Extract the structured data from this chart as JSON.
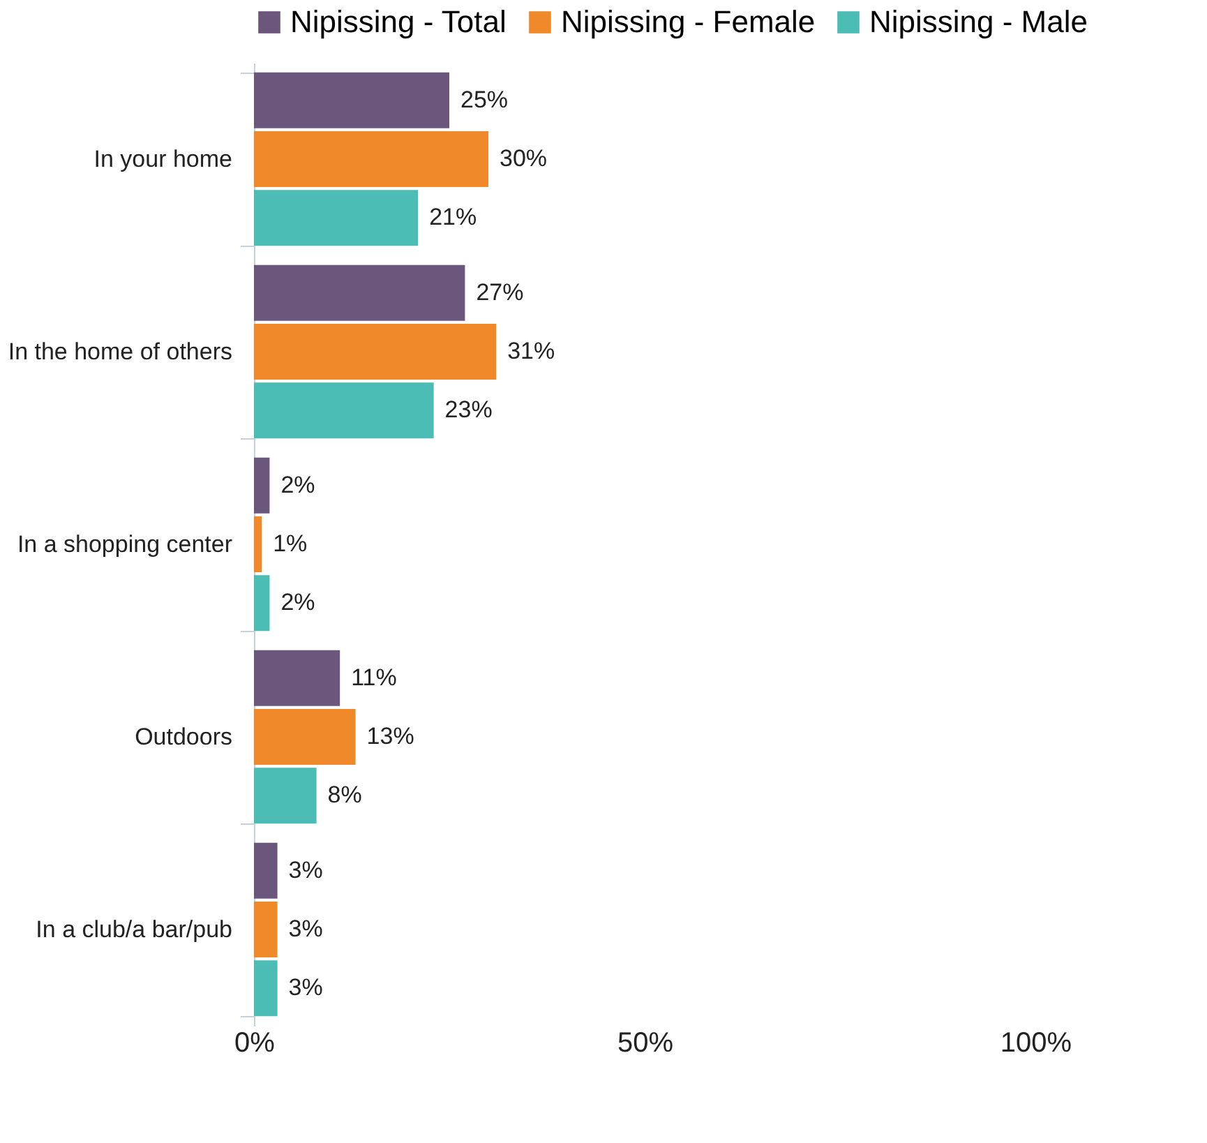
{
  "chart_data": {
    "type": "bar",
    "orientation": "horizontal",
    "legend": "top",
    "grid": false,
    "categories": [
      "In your home",
      "In the home of others",
      "In a shopping center",
      "Outdoors",
      "In a club/a bar/pub"
    ],
    "xlim": [
      0,
      100
    ],
    "xticks": [
      {
        "value": 0,
        "label": "0%"
      },
      {
        "value": 50,
        "label": "50%"
      },
      {
        "value": 100,
        "label": "100%"
      }
    ],
    "series": [
      {
        "name": "Nipissing - Total",
        "color": "#6b567c",
        "values": [
          25,
          27,
          2,
          11,
          3
        ],
        "value_labels": [
          "25%",
          "27%",
          "2%",
          "11%",
          "3%"
        ]
      },
      {
        "name": "Nipissing - Female",
        "color": "#f0892a",
        "values": [
          30,
          31,
          1,
          13,
          3
        ],
        "value_labels": [
          "30%",
          "31%",
          "1%",
          "13%",
          "3%"
        ]
      },
      {
        "name": "Nipissing - Male",
        "color": "#4cbdb5",
        "values": [
          21,
          23,
          2,
          8,
          3
        ],
        "value_labels": [
          "21%",
          "23%",
          "2%",
          "8%",
          "3%"
        ]
      }
    ]
  }
}
